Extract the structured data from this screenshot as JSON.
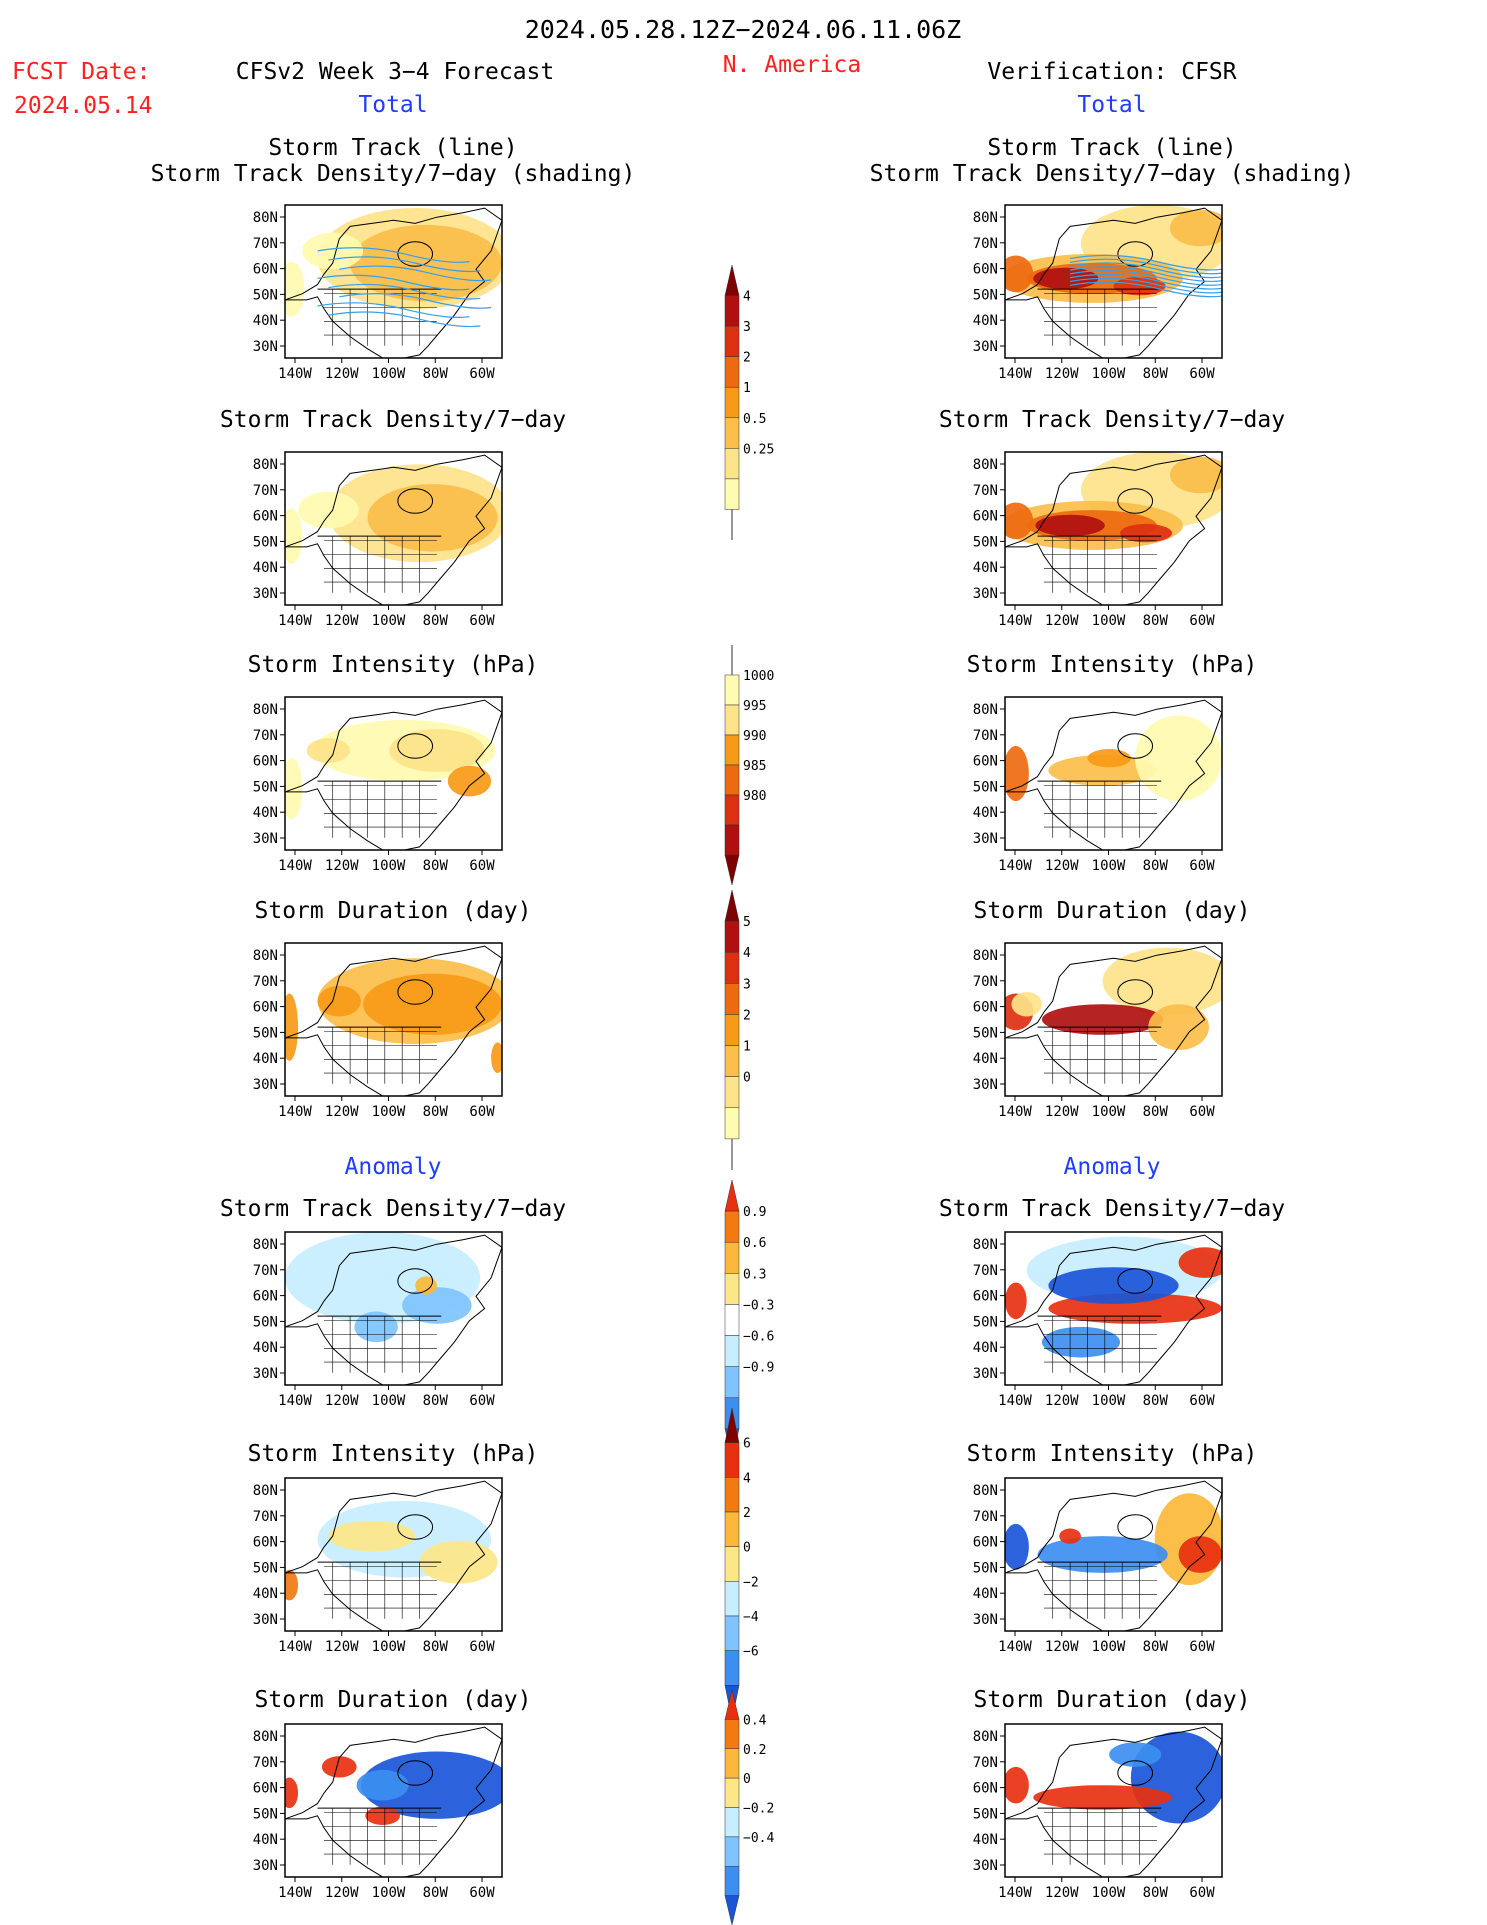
{
  "header": {
    "period": "2024.05.28.12Z−2024.06.11.06Z",
    "fcst_label": "FCST Date:",
    "fcst_date": "2024.05.14",
    "model": "CFSv2 Week 3−4 Forecast",
    "region": "N. America",
    "verification": "Verification: CFSR"
  },
  "sections": {
    "total": "Total",
    "anomaly": "Anomaly"
  },
  "panel_titles": {
    "track_line": "Storm Track (line)",
    "track_shading": "Storm Track Density/7−day (shading)",
    "density": "Storm Track Density/7−day",
    "intensity": "Storm Intensity (hPa)",
    "duration": "Storm Duration (day)"
  },
  "axes": {
    "lat_labels": [
      "80N",
      "70N",
      "60N",
      "50N",
      "40N",
      "30N"
    ],
    "lon_labels": [
      "140W",
      "120W",
      "100W",
      "80W",
      "60W"
    ]
  },
  "colorbars": {
    "total_density": {
      "labels": [
        "4",
        "3",
        "2",
        "1",
        "0.5",
        "0.25"
      ]
    },
    "total_intensity": {
      "labels": [
        "1000",
        "995",
        "990",
        "985",
        "980"
      ]
    },
    "total_duration": {
      "labels": [
        "5",
        "4",
        "3",
        "2",
        "1",
        "0"
      ]
    },
    "anom_density": {
      "labels": [
        "0.9",
        "0.6",
        "0.3",
        "−0.3",
        "−0.6",
        "−0.9"
      ]
    },
    "anom_intensity": {
      "labels": [
        "6",
        "4",
        "2",
        "0",
        "−2",
        "−4",
        "−6"
      ]
    },
    "anom_duration": {
      "labels": [
        "0.4",
        "0.2",
        "0",
        "−0.2",
        "−0.4"
      ]
    }
  },
  "colors": {
    "header_red": "#ff2020",
    "section_blue": "#1f3cff",
    "track_line": "#33a0f0",
    "total_scale": [
      "#fffbb0",
      "#fde38a",
      "#fbbe4a",
      "#f79a17",
      "#ee6a10",
      "#dd3010",
      "#b01010",
      "#800000"
    ],
    "anomaly_scale": [
      "#1a55d8",
      "#3c8ef0",
      "#7fc3ff",
      "#c7eeff",
      "#ffffff",
      "#fde688",
      "#fbb83a",
      "#f27a10",
      "#e83010"
    ]
  }
}
